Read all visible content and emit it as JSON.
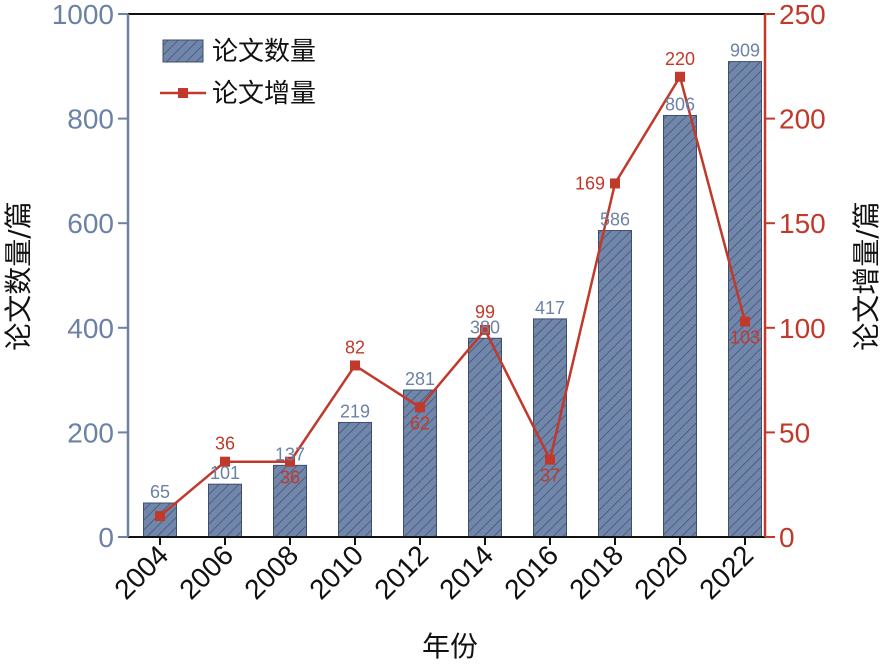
{
  "chart_data": {
    "type": "bar",
    "categories": [
      "2004",
      "2006",
      "2008",
      "2010",
      "2012",
      "2014",
      "2016",
      "2018",
      "2020",
      "2022"
    ],
    "series": [
      {
        "name": "论文数量",
        "kind": "bar",
        "axis": "left",
        "values": [
          65,
          101,
          137,
          219,
          281,
          380,
          417,
          586,
          806,
          909
        ],
        "labels": [
          "65",
          "101",
          "137",
          "219",
          "281",
          "380",
          "417",
          "586",
          "806",
          "909"
        ],
        "color": "#7186ab"
      },
      {
        "name": "论文增量",
        "kind": "line",
        "axis": "right",
        "values": [
          10,
          36,
          36,
          82,
          62,
          99,
          37,
          169,
          220,
          103
        ],
        "labels": [
          "",
          "36",
          "36",
          "82",
          "62",
          "99",
          "37",
          "169",
          "220",
          "103"
        ],
        "color": "#c0392b"
      }
    ],
    "xlabel": "年份",
    "ylabel_left": "论文数量/篇",
    "ylabel_right": "论文增量/篇",
    "ylim_left": [
      0,
      1000
    ],
    "ylim_right": [
      0,
      250
    ],
    "yticks_left": [
      "0",
      "200",
      "400",
      "600",
      "800",
      "1000"
    ],
    "yticks_right": [
      "0",
      "50",
      "100",
      "150",
      "200",
      "250"
    ],
    "legend_position": "top-left",
    "grid": false,
    "colors": {
      "left_axis": "#6b82a4",
      "right_axis": "#c0392b",
      "bar_fill": "#7186ab",
      "bar_hatch": "#3f4f6b",
      "line": "#c0392b"
    }
  }
}
